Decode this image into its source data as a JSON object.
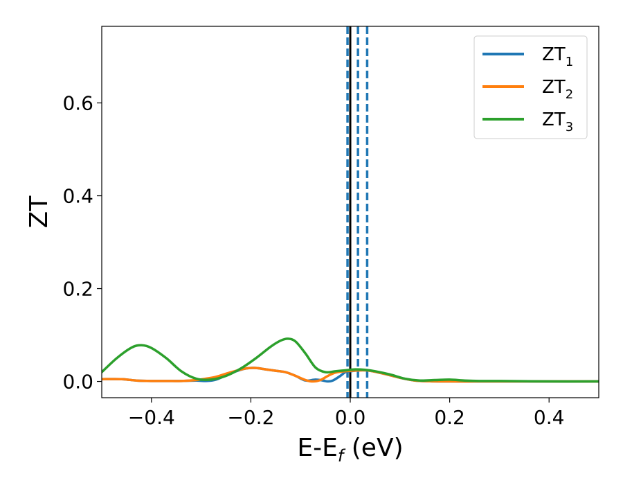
{
  "chart_data": {
    "type": "line",
    "title": "",
    "xlabel": {
      "main": "E-E",
      "sub": "f",
      "unit": " (eV)"
    },
    "ylabel": "ZT",
    "xlim": [
      -0.5,
      0.5
    ],
    "ylim": [
      -0.035,
      0.765
    ],
    "xticks": [
      -0.4,
      -0.2,
      0.0,
      0.2,
      0.4
    ],
    "xtick_labels": [
      "−0.4",
      "−0.2",
      "0.0",
      "0.2",
      "0.4"
    ],
    "yticks": [
      0.0,
      0.2,
      0.4,
      0.6
    ],
    "ytick_labels": [
      "0.0",
      "0.2",
      "0.4",
      "0.6"
    ],
    "grid": false,
    "legend_position": "top-right",
    "series": [
      {
        "name": "ZT",
        "name_sub": "1",
        "color": "#1f77b4",
        "x": [
          -0.5,
          -0.46,
          -0.43,
          -0.4,
          -0.37,
          -0.34,
          -0.31,
          -0.29,
          -0.27,
          -0.24,
          -0.21,
          -0.19,
          -0.17,
          -0.15,
          -0.13,
          -0.11,
          -0.09,
          -0.07,
          -0.055,
          -0.045,
          -0.035,
          -0.02,
          -0.01,
          0.0,
          0.02,
          0.04,
          0.07,
          0.1,
          0.13,
          0.16,
          0.2,
          0.25,
          0.3,
          0.4,
          0.5
        ],
        "y": [
          0.005,
          0.005,
          0.002,
          0.001,
          0.001,
          0.001,
          0.002,
          0.001,
          0.004,
          0.018,
          0.028,
          0.029,
          0.026,
          0.023,
          0.02,
          0.012,
          0.002,
          0.004,
          0.002,
          0.0,
          0.002,
          0.012,
          0.02,
          0.022,
          0.024,
          0.023,
          0.016,
          0.008,
          0.002,
          0.0005,
          0.0,
          0.0,
          0.0,
          0.0,
          0.0
        ]
      },
      {
        "name": "ZT",
        "name_sub": "2",
        "color": "#ff7f0e",
        "x": [
          -0.5,
          -0.46,
          -0.43,
          -0.4,
          -0.37,
          -0.34,
          -0.31,
          -0.29,
          -0.27,
          -0.24,
          -0.21,
          -0.19,
          -0.17,
          -0.15,
          -0.13,
          -0.11,
          -0.09,
          -0.075,
          -0.06,
          -0.045,
          -0.03,
          -0.01,
          0.02,
          0.04,
          0.07,
          0.1,
          0.13,
          0.16,
          0.2,
          0.25,
          0.3,
          0.4,
          0.5
        ],
        "y": [
          0.005,
          0.005,
          0.002,
          0.001,
          0.001,
          0.001,
          0.003,
          0.006,
          0.01,
          0.02,
          0.028,
          0.029,
          0.026,
          0.023,
          0.02,
          0.012,
          0.003,
          0.0,
          0.003,
          0.012,
          0.019,
          0.022,
          0.024,
          0.023,
          0.016,
          0.008,
          0.002,
          0.0005,
          0.0,
          0.0,
          0.0,
          0.0,
          0.0
        ]
      },
      {
        "name": "ZT",
        "name_sub": "3",
        "color": "#2ca02c",
        "x": [
          -0.5,
          -0.47,
          -0.44,
          -0.42,
          -0.4,
          -0.37,
          -0.34,
          -0.31,
          -0.28,
          -0.25,
          -0.22,
          -0.19,
          -0.16,
          -0.14,
          -0.125,
          -0.11,
          -0.09,
          -0.07,
          -0.05,
          -0.03,
          -0.01,
          0.01,
          0.03,
          0.05,
          0.08,
          0.11,
          0.14,
          0.17,
          0.2,
          0.23,
          0.26,
          0.3,
          0.4,
          0.5
        ],
        "y": [
          0.02,
          0.05,
          0.073,
          0.078,
          0.072,
          0.05,
          0.022,
          0.006,
          0.004,
          0.012,
          0.028,
          0.05,
          0.075,
          0.088,
          0.092,
          0.086,
          0.06,
          0.03,
          0.02,
          0.022,
          0.024,
          0.026,
          0.025,
          0.022,
          0.015,
          0.006,
          0.002,
          0.003,
          0.004,
          0.002,
          0.001,
          0.001,
          0.0,
          0.0
        ]
      }
    ],
    "vlines": [
      {
        "x": 0.0,
        "style": "solid",
        "color": "#000000"
      },
      {
        "x": -0.0055,
        "style": "dashed",
        "color": "#1f77b4"
      },
      {
        "x": 0.0155,
        "style": "dashed",
        "color": "#1f77b4"
      },
      {
        "x": 0.034,
        "style": "dashed",
        "color": "#1f77b4"
      }
    ]
  }
}
